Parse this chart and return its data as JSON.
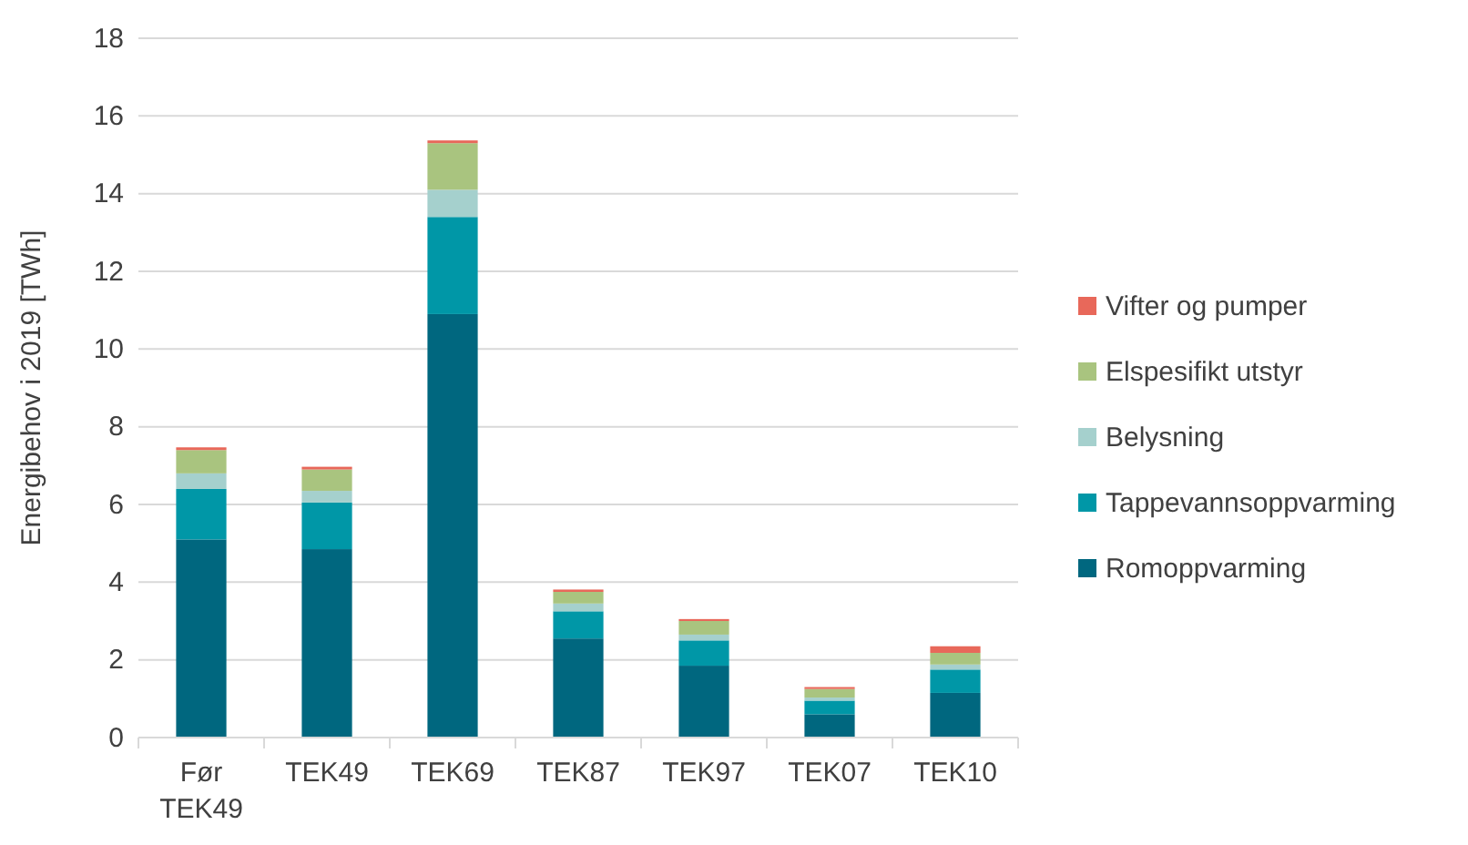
{
  "chart_data": {
    "type": "bar",
    "stacked": true,
    "ylabel": "Energibehov i 2019 [TWh]",
    "categories": [
      "Før TEK49",
      "TEK49",
      "TEK69",
      "TEK87",
      "TEK97",
      "TEK07",
      "TEK10"
    ],
    "series": [
      {
        "name": "Romoppvarming",
        "color": "#00677f",
        "values": [
          5.1,
          4.85,
          10.9,
          2.55,
          1.85,
          0.6,
          1.15
        ]
      },
      {
        "name": "Tappevannsoppvarming",
        "color": "#0097a7",
        "values": [
          1.3,
          1.2,
          2.5,
          0.7,
          0.65,
          0.35,
          0.6
        ]
      },
      {
        "name": "Belysning",
        "color": "#a5d0cd",
        "values": [
          0.4,
          0.3,
          0.7,
          0.2,
          0.15,
          0.08,
          0.13
        ]
      },
      {
        "name": "Elspesifikt utstyr",
        "color": "#a9c47f",
        "values": [
          0.6,
          0.55,
          1.2,
          0.3,
          0.35,
          0.22,
          0.3
        ]
      },
      {
        "name": "Vifter og pumper",
        "color": "#e8685a",
        "values": [
          0.07,
          0.07,
          0.07,
          0.06,
          0.05,
          0.05,
          0.17
        ]
      }
    ],
    "ylim": [
      0,
      18
    ],
    "yticks": [
      0,
      2,
      4,
      6,
      8,
      10,
      12,
      14,
      16,
      18
    ],
    "grid": "y",
    "legend": "right"
  }
}
